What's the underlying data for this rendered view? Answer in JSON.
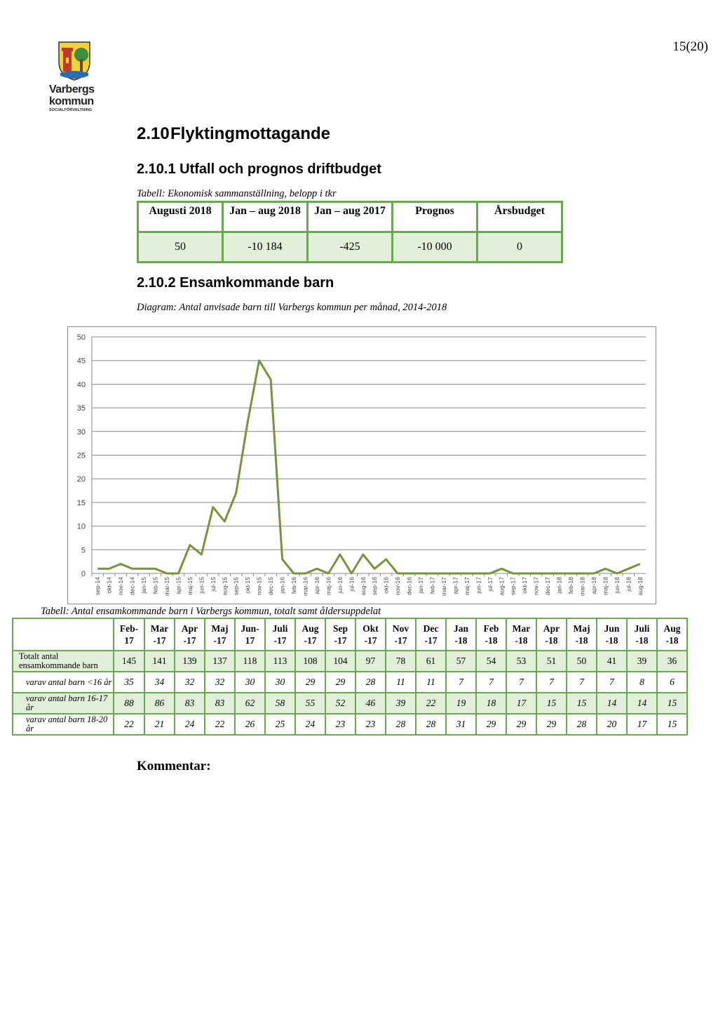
{
  "page_number": "15(20)",
  "logo": {
    "line1": "Varbergs",
    "line2": "kommun",
    "line3": "SOCIALFÖRVALTNING"
  },
  "heading_main": {
    "number": "2.10",
    "text": "Flyktingmottagande"
  },
  "heading_sub1": "2.10.1 Utfall och prognos driftbudget",
  "caption_budget": "Tabell: Ekonomisk sammanställning, belopp i tkr",
  "budget_table": {
    "headers": [
      "Augusti 2018",
      "Jan – aug 2018",
      "Jan – aug 2017",
      "Prognos",
      "Årsbudget"
    ],
    "values": [
      "50",
      "-10 184",
      "-425",
      "-10 000",
      "0"
    ]
  },
  "heading_sub2": "2.10.2 Ensamkommande barn",
  "caption_chart": "Diagram: Antal anvisade barn till Varbergs kommun per månad, 2014-2018",
  "chart_data": {
    "type": "line",
    "x": [
      "sep-14",
      "okt-14",
      "nov-14",
      "dec-14",
      "jan-15",
      "feb-15",
      "mar-15",
      "apr-15",
      "maj-15",
      "jun-15",
      "jul-15",
      "aug-15",
      "sep-15",
      "okt-15",
      "nov-15",
      "dec-15",
      "jan-16",
      "feb-16",
      "mar-16",
      "apr-16",
      "maj-16",
      "jun-16",
      "jul-16",
      "aug-16",
      "sep-16",
      "okt-16",
      "nov-16",
      "dec-16",
      "jan-17",
      "feb-17",
      "mar-17",
      "apr-17",
      "maj-17",
      "jun-17",
      "jul-17",
      "aug-17",
      "sep-17",
      "okt-17",
      "nov-17",
      "dec-17",
      "jan-18",
      "feb-18",
      "mar-18",
      "apr-18",
      "maj-18",
      "jun-18",
      "jul-18",
      "aug-18"
    ],
    "series": [
      {
        "values": [
          1,
          1,
          2,
          1,
          1,
          1,
          0,
          0,
          6,
          4,
          14,
          11,
          17,
          32,
          45,
          41,
          3,
          0,
          0,
          1,
          0,
          4,
          0,
          4,
          1,
          3,
          0,
          0,
          0,
          0,
          0,
          0,
          0,
          0,
          0,
          1,
          0,
          0,
          0,
          0,
          0,
          0,
          0,
          0,
          1,
          0,
          1,
          2
        ]
      }
    ],
    "ylim": [
      0,
      50
    ],
    "yticks": [
      "0",
      "5",
      "10",
      "15",
      "20",
      "25",
      "30",
      "35",
      "40",
      "45",
      "50"
    ],
    "grid": true,
    "color": "#77933c"
  },
  "caption_kids": "Tabell: Antal ensamkommande barn i Varbergs kommun, totalt samt åldersuppdelat",
  "kids_table": {
    "headers": [
      "Feb- 17",
      "Mar -17",
      "Apr -17",
      "Maj -17",
      "Jun- 17",
      "Juli -17",
      "Aug -17",
      "Sep -17",
      "Okt -17",
      "Nov -17",
      "Dec -17",
      "Jan -18",
      "Feb -18",
      "Mar -18",
      "Apr -18",
      "Maj -18",
      "Jun -18",
      "Juli -18",
      "Aug -18"
    ],
    "rows": [
      {
        "label": "Totalt antal ensamkommande barn",
        "values": [
          "145",
          "141",
          "139",
          "137",
          "118",
          "113",
          "108",
          "104",
          "97",
          "78",
          "61",
          "57",
          "54",
          "53",
          "51",
          "50",
          "41",
          "39",
          "36"
        ]
      },
      {
        "label": "varav antal barn <16 år",
        "values": [
          "35",
          "34",
          "32",
          "32",
          "30",
          "30",
          "29",
          "29",
          "28",
          "11",
          "11",
          "7",
          "7",
          "7",
          "7",
          "7",
          "7",
          "8",
          "6"
        ]
      },
      {
        "label": "varav antal barn 16-17 år",
        "values": [
          "88",
          "86",
          "83",
          "83",
          "62",
          "58",
          "55",
          "52",
          "46",
          "39",
          "22",
          "19",
          "18",
          "17",
          "15",
          "15",
          "14",
          "14",
          "15"
        ]
      },
      {
        "label": "varav antal barn 18-20 år",
        "values": [
          "22",
          "21",
          "24",
          "22",
          "26",
          "25",
          "24",
          "23",
          "23",
          "28",
          "28",
          "31",
          "29",
          "29",
          "29",
          "28",
          "20",
          "17",
          "15"
        ]
      }
    ]
  },
  "kommentar": "Kommentar:"
}
